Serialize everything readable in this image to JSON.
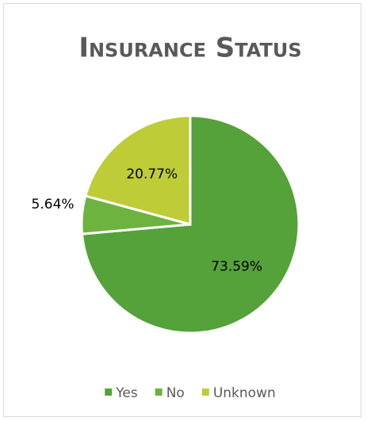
{
  "chart_data": {
    "type": "pie",
    "title": "Insurance Status",
    "categories": [
      "Yes",
      "No",
      "Unknown"
    ],
    "values": [
      73.59,
      5.64,
      20.77
    ],
    "value_labels": [
      "73.59%",
      "5.64%",
      "20.77%"
    ],
    "colors": [
      "#55a13a",
      "#6db33f",
      "#bdcc37"
    ],
    "legend": "bottom"
  }
}
